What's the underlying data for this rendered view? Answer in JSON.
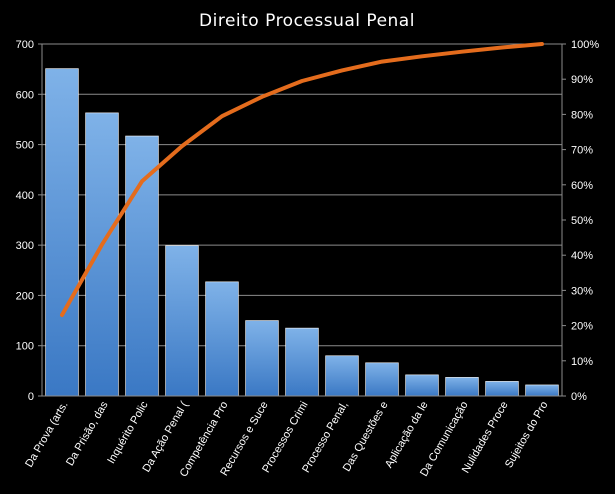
{
  "chart_data": {
    "type": "bar",
    "title": "Direito Processual Penal",
    "categories": [
      "Da Prova (arts.",
      "Da Prisão, das",
      "Inquérito Polic",
      "Da Ação Penal (",
      "Competência Pro",
      "Recursos e Suce",
      "Processos Crimi",
      "Processo Penal,",
      "Das Questões e",
      "Aplicação da le",
      "Da Comunicação",
      "Nulidades Proce",
      "Sujeitos do Pro"
    ],
    "series": [
      {
        "type": "bar",
        "values": [
          651,
          563,
          517,
          299,
          227,
          150,
          135,
          80,
          66,
          42,
          37,
          29,
          22
        ]
      },
      {
        "type": "line",
        "axis": "right",
        "values": [
          23,
          43,
          61,
          71,
          79.5,
          85,
          89.5,
          92.5,
          95,
          96.5,
          97.8,
          99,
          100
        ]
      }
    ],
    "ylim": [
      0,
      700
    ],
    "yticks": [
      0,
      100,
      200,
      300,
      400,
      500,
      600,
      700
    ],
    "y2lim": [
      0,
      100
    ],
    "y2ticks": [
      "0%",
      "10%",
      "20%",
      "30%",
      "40%",
      "50%",
      "60%",
      "70%",
      "80%",
      "90%",
      "100%"
    ],
    "grid": true,
    "legend": "none",
    "colors": {
      "background": "#000000",
      "bar_top": "#7fb2e8",
      "bar_bottom": "#3a78c4",
      "bar_stroke": "#ffffff",
      "line": "#e46c1d",
      "grid": "#8c8c8c",
      "text": "#ffffff"
    }
  }
}
